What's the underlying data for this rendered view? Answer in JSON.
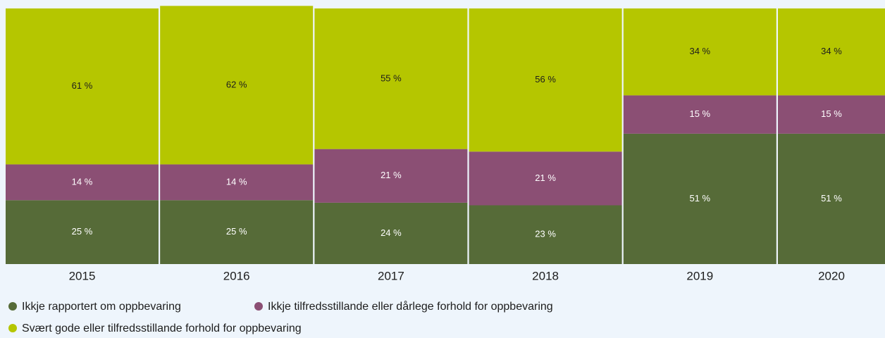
{
  "chart_data": {
    "type": "stacked_bar",
    "categories": [
      "2015",
      "2016",
      "2017",
      "2018",
      "2019",
      "2020"
    ],
    "ylim": [
      0,
      100
    ],
    "series": [
      {
        "name": "Ikkje rapportert om oppbevaring",
        "color": "#566b38",
        "label_color": "#ffffff",
        "values": [
          25,
          25,
          24,
          23,
          51,
          51
        ],
        "value_labels": [
          "25 %",
          "25 %",
          "24 %",
          "23 %",
          "51 %",
          "51 %"
        ]
      },
      {
        "name": "Ikkje tilfredsstillande eller dårlege forhold for oppbevaring",
        "color": "#8b4f74",
        "label_color": "#ffffff",
        "values": [
          14,
          14,
          21,
          21,
          15,
          15
        ],
        "value_labels": [
          "14 %",
          "14 %",
          "21 %",
          "21 %",
          "15 %",
          "15 %"
        ]
      },
      {
        "name": "Svært gode eller tilfredsstillande forhold for oppbevaring",
        "color": "#b5c600",
        "label_color": "#1d1d1d",
        "values": [
          61,
          62,
          55,
          56,
          34,
          34
        ],
        "value_labels": [
          "61 %",
          "62 %",
          "55 %",
          "56 %",
          "34 %",
          "34 %"
        ]
      }
    ]
  }
}
